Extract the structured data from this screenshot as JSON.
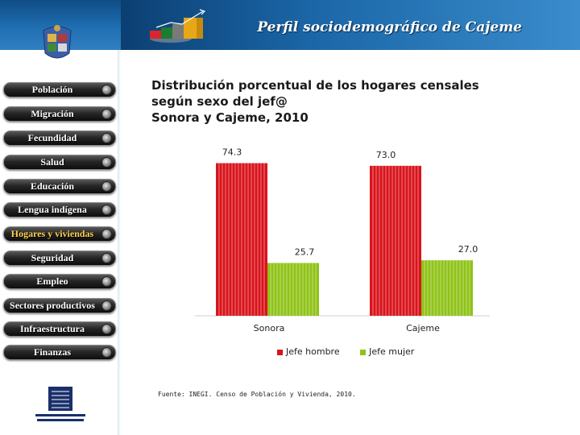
{
  "header": {
    "title": "Perfil sociodemográfico de Cajeme"
  },
  "sidebar": {
    "items": [
      {
        "label": "Población",
        "active": false
      },
      {
        "label": "Migración",
        "active": false
      },
      {
        "label": "Fecundidad",
        "active": false
      },
      {
        "label": "Salud",
        "active": false
      },
      {
        "label": "Educación",
        "active": false
      },
      {
        "label": "Lengua indígena",
        "active": false
      },
      {
        "label": "Hogares y viviendas",
        "active": true
      },
      {
        "label": "Seguridad",
        "active": false
      },
      {
        "label": "Empleo",
        "active": false
      },
      {
        "label": "Sectores productivos",
        "active": false
      },
      {
        "label": "Infraestructura",
        "active": false
      },
      {
        "label": "Finanzas",
        "active": false
      }
    ]
  },
  "footer": {
    "source": "Fuente: INEGI. Censo de Población y Vivienda, 2010."
  },
  "colors": {
    "jefe_hombre": "#d9141c",
    "jefe_mujer": "#8fc318"
  },
  "chart_data": {
    "type": "bar",
    "title_lines": [
      "Distribución porcentual de los hogares censales",
      "según sexo del jef@",
      "Sonora y Cajeme, 2010"
    ],
    "categories": [
      "Sonora",
      "Cajeme"
    ],
    "series": [
      {
        "name": "Jefe hombre",
        "values": [
          74.3,
          73.0
        ],
        "labels": [
          "74.3",
          "73.0"
        ]
      },
      {
        "name": "Jefe mujer",
        "values": [
          25.7,
          27.0
        ],
        "labels": [
          "25.7",
          "27.0"
        ]
      }
    ],
    "ylim": [
      0,
      80
    ],
    "grid": false,
    "legend_position": "bottom"
  }
}
